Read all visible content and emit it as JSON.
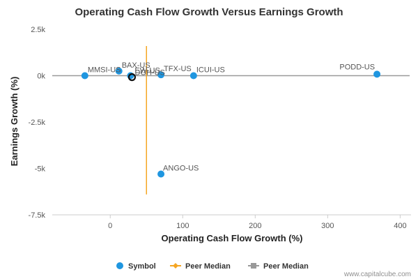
{
  "chart_data": {
    "type": "scatter",
    "title": "Operating Cash Flow Growth Versus Earnings Growth",
    "xlabel": "Operating Cash Flow Growth (%)",
    "ylabel": "Earnings Growth (%)",
    "xlim": [
      -80,
      415
    ],
    "ylim": [
      -7500,
      2500
    ],
    "x_ticks": [
      0,
      100,
      200,
      300,
      400
    ],
    "x_tick_labels": [
      "0",
      "100",
      "200",
      "300",
      "400"
    ],
    "y_ticks": [
      2500,
      0,
      -2500,
      -5000,
      -7500
    ],
    "y_tick_labels": [
      "2.5k",
      "0k",
      "-2.5k",
      "-5k",
      "-7.5k"
    ],
    "grid": false,
    "legend_position": "bottom",
    "series": [
      {
        "name": "Symbol",
        "color": "#1f96e0",
        "points": [
          {
            "label": "MMSI-US",
            "x": -35,
            "y": 0
          },
          {
            "label": "BAX-US",
            "x": 12,
            "y": 250
          },
          {
            "label": "EW-US",
            "x": 28,
            "y": 0
          },
          {
            "label": "TFX-US",
            "x": 70,
            "y": 50
          },
          {
            "label": "ICUI-US",
            "x": 115,
            "y": 0
          },
          {
            "label": "PODD-US",
            "x": 368,
            "y": 80
          },
          {
            "label": "ANGO-US",
            "x": 70,
            "y": -5300
          }
        ]
      }
    ],
    "highlight_points": [
      {
        "label": "DGH-US",
        "x": 30,
        "y": -80
      }
    ],
    "peer_median": {
      "x": 50,
      "y": 0,
      "vertical_line_y_range": [
        -6400,
        1600
      ],
      "vertical_color": "#f5a623",
      "horizontal_color": "#999999"
    },
    "legend": [
      {
        "label": "Symbol",
        "marker": "circle",
        "color": "#1f96e0"
      },
      {
        "label": "Peer Median",
        "marker": "diamond-line",
        "color": "#f5a623"
      },
      {
        "label": "Peer Median",
        "marker": "square-line",
        "color": "#999999"
      }
    ]
  },
  "credit": "www.capitalcube.com"
}
